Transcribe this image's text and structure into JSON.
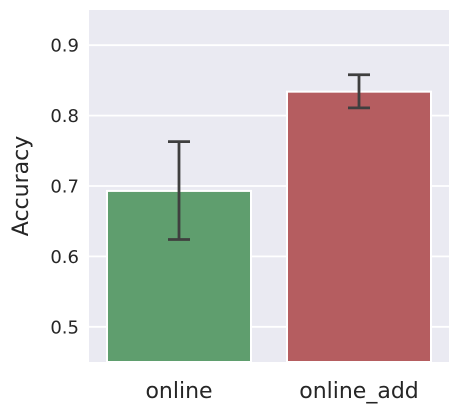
{
  "chart_data": {
    "type": "bar",
    "title": "",
    "xlabel": "",
    "ylabel": "Accuracy",
    "categories": [
      "online",
      "online_add"
    ],
    "values": [
      0.693,
      0.834
    ],
    "error_bars": [
      {
        "low": 0.624,
        "high": 0.763
      },
      {
        "low": 0.811,
        "high": 0.858
      }
    ],
    "ylim": [
      0.45,
      0.95
    ],
    "yticks": [
      0.5,
      0.6,
      0.7,
      0.8,
      0.9
    ],
    "ytick_labels": [
      "0.5",
      "0.6",
      "0.7",
      "0.8",
      "0.9"
    ],
    "grid": true,
    "legend": "none",
    "colors": {
      "bars": [
        "#5f9e6e",
        "#b55d60"
      ],
      "background": "#eaeaf2",
      "grid": "#ffffff",
      "errorbar": "#3f3f3f",
      "text": "#262626"
    }
  }
}
